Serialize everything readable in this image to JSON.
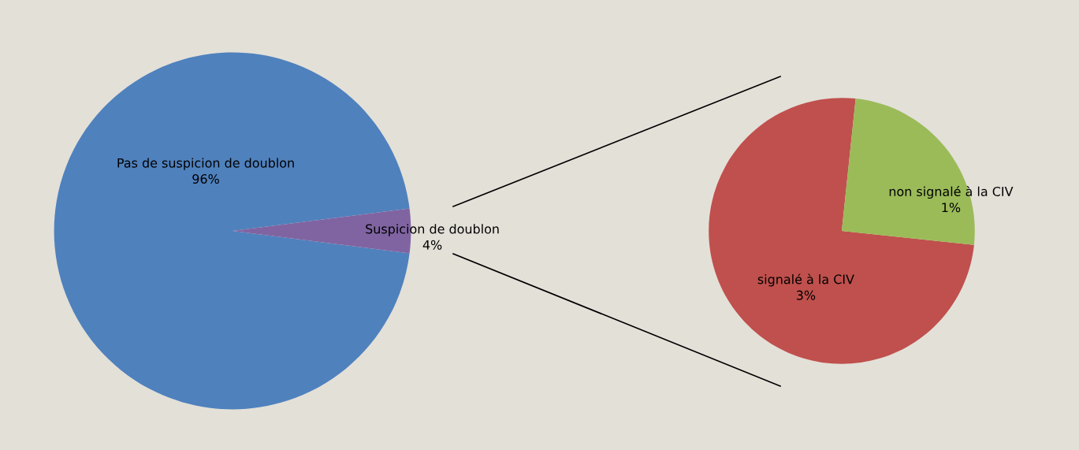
{
  "chart_data": [
    {
      "type": "pie",
      "categories": [
        "Pas de suspicion de doublon",
        "Suspicion de doublon"
      ],
      "values": [
        96,
        4
      ],
      "colors": [
        "#4f81bd",
        "#8064a2"
      ],
      "value_labels": [
        "96%",
        "4%"
      ]
    },
    {
      "type": "pie",
      "categories": [
        "signalé à la CIV",
        "non signalé à la CIV"
      ],
      "values": [
        3,
        1
      ],
      "colors": [
        "#c0504d",
        "#9bbb59"
      ],
      "value_labels": [
        "3%",
        "1%"
      ]
    }
  ]
}
